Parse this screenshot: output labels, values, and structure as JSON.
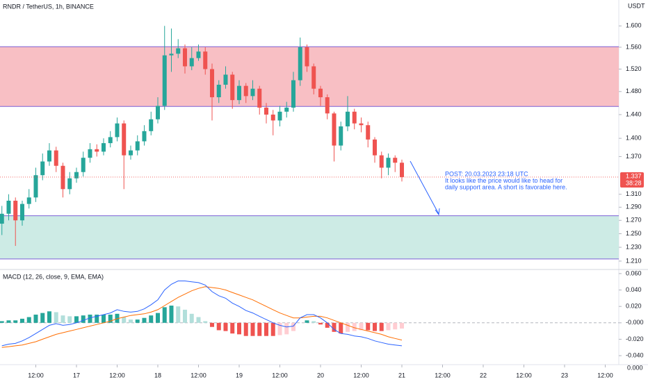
{
  "chart_data": [
    {
      "type": "candlestick",
      "title": "RNDR / TetherUS, 1h, BINANCE",
      "axis_unit": "USDT",
      "x": [
        2,
        4,
        6,
        8,
        10,
        12,
        14,
        16,
        18,
        20,
        22,
        24,
        26,
        28,
        30,
        32,
        34,
        36,
        38,
        40,
        42,
        44,
        46,
        48,
        50,
        52,
        54,
        56,
        58,
        60,
        62,
        64,
        66,
        68,
        70,
        72,
        74,
        76,
        78,
        80,
        82,
        84,
        86,
        88,
        90,
        92,
        94,
        96,
        98,
        100,
        102,
        104,
        106,
        108,
        110,
        112,
        114,
        116,
        118,
        120
      ],
      "open": [
        1.265,
        1.28,
        1.3,
        1.27,
        1.295,
        1.305,
        1.34,
        1.362,
        1.38,
        1.355,
        1.318,
        1.335,
        1.345,
        1.368,
        1.382,
        1.378,
        1.392,
        1.402,
        1.425,
        1.372,
        1.38,
        1.395,
        1.412,
        1.432,
        1.455,
        1.545,
        1.548,
        1.558,
        1.525,
        1.54,
        1.552,
        1.52,
        1.47,
        1.492,
        1.51,
        1.465,
        1.49,
        1.472,
        1.485,
        1.452,
        1.44,
        1.43,
        1.445,
        1.452,
        1.5,
        1.56,
        1.525,
        1.485,
        1.47,
        1.442,
        1.388,
        1.42,
        1.445,
        1.425,
        1.422,
        1.398,
        1.372,
        1.352,
        1.368,
        1.36
      ],
      "high": [
        1.292,
        1.31,
        1.305,
        1.3,
        1.318,
        1.352,
        1.375,
        1.392,
        1.386,
        1.36,
        1.345,
        1.352,
        1.378,
        1.392,
        1.39,
        1.4,
        1.412,
        1.435,
        1.43,
        1.388,
        1.405,
        1.422,
        1.445,
        1.47,
        1.6,
        1.595,
        1.575,
        1.565,
        1.56,
        1.565,
        1.56,
        1.53,
        1.5,
        1.525,
        1.515,
        1.5,
        1.495,
        1.5,
        1.49,
        1.46,
        1.448,
        1.455,
        1.462,
        1.515,
        1.578,
        1.565,
        1.53,
        1.49,
        1.475,
        1.445,
        1.428,
        1.472,
        1.45,
        1.435,
        1.428,
        1.402,
        1.378,
        1.375,
        1.372,
        1.365
      ],
      "low": [
        1.248,
        1.27,
        1.232,
        1.262,
        1.288,
        1.298,
        1.332,
        1.355,
        1.345,
        1.305,
        1.31,
        1.328,
        1.338,
        1.36,
        1.37,
        1.372,
        1.385,
        1.395,
        1.318,
        1.365,
        1.372,
        1.388,
        1.405,
        1.425,
        1.448,
        1.515,
        1.54,
        1.512,
        1.518,
        1.535,
        1.51,
        1.43,
        1.46,
        1.485,
        1.45,
        1.458,
        1.46,
        1.465,
        1.44,
        1.425,
        1.405,
        1.42,
        1.435,
        1.445,
        1.49,
        1.515,
        1.475,
        1.455,
        1.432,
        1.362,
        1.38,
        1.412,
        1.415,
        1.41,
        1.385,
        1.36,
        1.335,
        1.34,
        1.345,
        1.33
      ],
      "close": [
        1.28,
        1.3,
        1.27,
        1.295,
        1.305,
        1.34,
        1.362,
        1.38,
        1.355,
        1.318,
        1.335,
        1.345,
        1.368,
        1.382,
        1.378,
        1.392,
        1.402,
        1.425,
        1.372,
        1.38,
        1.395,
        1.412,
        1.432,
        1.455,
        1.545,
        1.548,
        1.558,
        1.525,
        1.54,
        1.552,
        1.52,
        1.47,
        1.492,
        1.51,
        1.465,
        1.49,
        1.472,
        1.485,
        1.452,
        1.44,
        1.43,
        1.445,
        1.452,
        1.5,
        1.56,
        1.525,
        1.485,
        1.47,
        1.442,
        1.388,
        1.42,
        1.445,
        1.425,
        1.422,
        1.398,
        1.372,
        1.352,
        1.368,
        1.36,
        1.337
      ],
      "up_color": "#26a69a",
      "down_color": "#ef5350",
      "xlim": [
        1.44,
        184
      ],
      "xticks": [
        {
          "value": 12,
          "label": "12:00"
        },
        {
          "value": 24,
          "label": "17"
        },
        {
          "value": 36,
          "label": "12:00"
        },
        {
          "value": 48,
          "label": "18"
        },
        {
          "value": 60,
          "label": "12:00"
        },
        {
          "value": 72,
          "label": "19"
        },
        {
          "value": 84,
          "label": "12:00"
        },
        {
          "value": 96,
          "label": "20"
        },
        {
          "value": 108,
          "label": "12:00"
        },
        {
          "value": 120,
          "label": "21"
        },
        {
          "value": 132,
          "label": "12:00"
        },
        {
          "value": 144,
          "label": "22"
        },
        {
          "value": 156,
          "label": "12:00"
        },
        {
          "value": 168,
          "label": "23"
        },
        {
          "value": 180,
          "label": "12:00"
        }
      ],
      "ylim": [
        1.198,
        1.65
      ],
      "log_scale": true,
      "yticks": [
        {
          "value": 1.6,
          "label": "1.600"
        },
        {
          "value": 1.56,
          "label": "1.560"
        },
        {
          "value": 1.52,
          "label": "1.520"
        },
        {
          "value": 1.48,
          "label": "1.480"
        },
        {
          "value": 1.44,
          "label": "1.440"
        },
        {
          "value": 1.4,
          "label": "1.400"
        },
        {
          "value": 1.37,
          "label": "1.370"
        },
        {
          "value": 1.31,
          "label": "1.310"
        },
        {
          "value": 1.29,
          "label": "1.290"
        },
        {
          "value": 1.27,
          "label": "1.270"
        },
        {
          "value": 1.25,
          "label": "1.250"
        },
        {
          "value": 1.23,
          "label": "1.230"
        },
        {
          "value": 1.21,
          "label": "1.210"
        }
      ],
      "zones": [
        {
          "from": 1.454,
          "to": 1.561,
          "color": "#f8bfc4",
          "edge": "#7b61d6"
        },
        {
          "from": 1.213,
          "to": 1.277,
          "color": "#cdebe5",
          "edge": "#7b61d6"
        }
      ],
      "last_price": 1.337,
      "countdown": "38:28",
      "annotation": [
        "POST: 20.03.2023 23:18 UTC",
        "It looks like the price would like to head for",
        "daily support area. A short is favorable here."
      ]
    },
    {
      "type": "macd",
      "title": "MACD (12, 26, close, 9, EMA, EMA)",
      "macd": [
        -0.028,
        -0.026,
        -0.025,
        -0.022,
        -0.018,
        -0.013,
        -0.008,
        -0.003,
        -0.001,
        -0.003,
        -0.002,
        0.0,
        0.003,
        0.006,
        0.008,
        0.01,
        0.012,
        0.016,
        0.014,
        0.013,
        0.014,
        0.017,
        0.022,
        0.028,
        0.04,
        0.047,
        0.051,
        0.051,
        0.05,
        0.049,
        0.046,
        0.038,
        0.033,
        0.03,
        0.024,
        0.02,
        0.015,
        0.012,
        0.008,
        0.004,
        0.0,
        -0.003,
        -0.005,
        -0.004,
        0.006,
        0.01,
        0.01,
        0.006,
        0.0,
        -0.008,
        -0.013,
        -0.014,
        -0.016,
        -0.017,
        -0.019,
        -0.022,
        -0.024,
        -0.026,
        -0.027,
        -0.028
      ],
      "signal": [
        -0.03,
        -0.029,
        -0.028,
        -0.027,
        -0.025,
        -0.023,
        -0.02,
        -0.017,
        -0.014,
        -0.012,
        -0.01,
        -0.008,
        -0.006,
        -0.004,
        -0.002,
        0.0,
        0.002,
        0.005,
        0.007,
        0.009,
        0.01,
        0.011,
        0.013,
        0.016,
        0.021,
        0.026,
        0.031,
        0.035,
        0.039,
        0.042,
        0.044,
        0.043,
        0.042,
        0.04,
        0.037,
        0.034,
        0.031,
        0.028,
        0.024,
        0.02,
        0.016,
        0.012,
        0.009,
        0.006,
        0.006,
        0.007,
        0.008,
        0.008,
        0.006,
        0.003,
        0.0,
        -0.003,
        -0.006,
        -0.008,
        -0.01,
        -0.012,
        -0.014,
        -0.017,
        -0.019,
        -0.021
      ],
      "histogram": [
        0.002,
        0.003,
        0.003,
        0.005,
        0.007,
        0.01,
        0.012,
        0.014,
        0.013,
        0.009,
        0.008,
        0.008,
        0.009,
        0.01,
        0.01,
        0.01,
        0.01,
        0.011,
        0.007,
        0.004,
        0.004,
        0.006,
        0.009,
        0.012,
        0.019,
        0.021,
        0.02,
        0.016,
        0.011,
        0.007,
        0.002,
        -0.005,
        -0.009,
        -0.01,
        -0.013,
        -0.014,
        -0.016,
        -0.016,
        -0.016,
        -0.016,
        -0.016,
        -0.015,
        -0.014,
        -0.01,
        0.0,
        0.003,
        0.002,
        -0.002,
        -0.006,
        -0.011,
        -0.013,
        -0.011,
        -0.01,
        -0.009,
        -0.009,
        -0.01,
        -0.01,
        -0.009,
        -0.008,
        -0.007
      ],
      "macd_color": "#2962ff",
      "signal_color": "#ff6d00",
      "hist_colors": [
        "#26a69a",
        "#b2dfdb",
        "#ef5350",
        "#ffcdd2"
      ],
      "ylim": [
        -0.0467,
        0.0633
      ],
      "zero_line": true,
      "yticks": [
        {
          "value": 0.06,
          "label": "0.060"
        },
        {
          "value": 0.04,
          "label": "0.040"
        },
        {
          "value": 0.02,
          "label": "0.020"
        },
        {
          "value": 0,
          "label": "-0.000"
        },
        {
          "value": -0.02,
          "label": "-0.020"
        },
        {
          "value": -0.04,
          "label": "-0.040"
        }
      ],
      "lower_pane_label": "0.000"
    }
  ]
}
